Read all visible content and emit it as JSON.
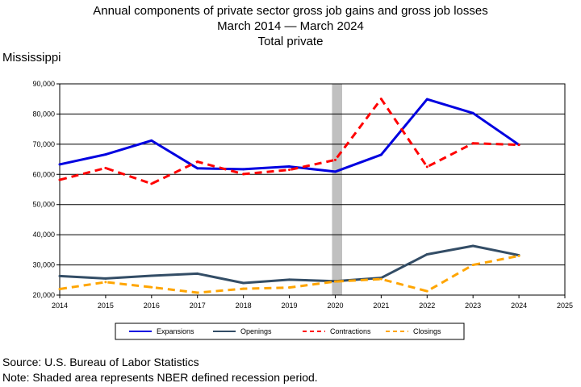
{
  "title_lines": [
    "Annual components of private sector gross job gains and gross job losses",
    "March 2014 — March 2024",
    "Total private"
  ],
  "region": "Mississippi",
  "footer": {
    "source": "Source: U.S. Bureau of Labor Statistics",
    "note": "Note: Shaded area represents NBER defined recession period."
  },
  "chart_data": {
    "type": "line",
    "x": [
      2014,
      2015,
      2016,
      2017,
      2018,
      2019,
      2020,
      2021,
      2022,
      2023,
      2024
    ],
    "xlim": [
      2014,
      2025
    ],
    "ylim": [
      20000,
      90000
    ],
    "x_ticks": [
      "2014",
      "2015",
      "2016",
      "2017",
      "2018",
      "2019",
      "2020",
      "2021",
      "2022",
      "2023",
      "2024",
      "2025"
    ],
    "y_ticks": [
      "20,000",
      "30,000",
      "40,000",
      "50,000",
      "60,000",
      "70,000",
      "80,000",
      "90,000"
    ],
    "grid": true,
    "legend_position": "bottom",
    "recession": [
      2020.0,
      2020.15
    ],
    "series": [
      {
        "name": "Expansions",
        "color": "#0000e0",
        "dash": "solid",
        "values": [
          63300,
          66600,
          71200,
          62000,
          61700,
          62600,
          60900,
          66500,
          84900,
          80300,
          69800
        ]
      },
      {
        "name": "Openings",
        "color": "#334d66",
        "dash": "solid",
        "values": [
          26300,
          25500,
          26400,
          27100,
          24000,
          25100,
          24600,
          25700,
          33500,
          36300,
          33200
        ]
      },
      {
        "name": "Contractions",
        "color": "#ff0000",
        "dash": "dashed",
        "values": [
          58200,
          62100,
          56900,
          64200,
          60100,
          61500,
          64800,
          85000,
          62500,
          70300,
          69800
        ]
      },
      {
        "name": "Closings",
        "color": "#ffa500",
        "dash": "dashed",
        "values": [
          22000,
          24300,
          22600,
          20800,
          22100,
          22500,
          24500,
          25300,
          21300,
          30000,
          33000
        ]
      }
    ]
  }
}
